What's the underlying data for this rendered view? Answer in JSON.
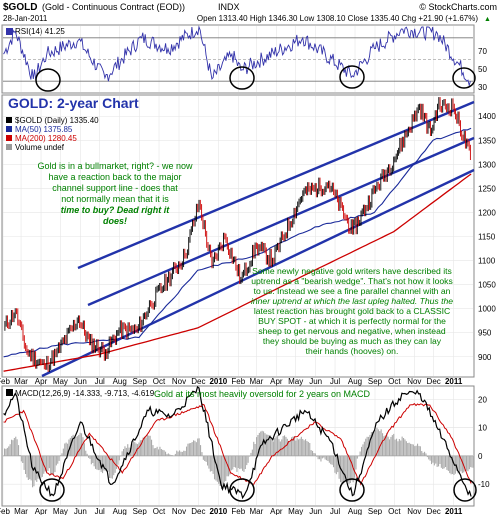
{
  "header": {
    "symbol": "$GOLD",
    "name": "(Gold - Continuous Contract (EOD))",
    "exchange": "INDX",
    "brand": "© StockCharts.com",
    "date": "28-Jan-2011",
    "quote": "Open 1313.40  High 1346.30  Low 1308.10  Close 1335.40  Chg +21.90 (+1.67%)",
    "chg_arrow": "▲"
  },
  "rsi": {
    "label": "RSI(14) 41.25",
    "ticks": [
      "70",
      "50",
      "30"
    ]
  },
  "price": {
    "title": "GOLD: 2-year Chart",
    "legend": [
      "$GOLD (Daily) 1335.40",
      "MA(50) 1375.85",
      "MA(200) 1280.45",
      "Volume undef"
    ],
    "legend_colors": [
      "#000000",
      "#1a2a9a",
      "#cc0000",
      "#000000"
    ],
    "yticks": [
      "1400",
      "1350",
      "1300",
      "1250",
      "1200",
      "1150",
      "1100",
      "1050",
      "1000",
      "950",
      "900"
    ],
    "note1": [
      "Gold is in a bullmarket, right? - we now",
      "have a reaction back to the major",
      "channel support line - does that",
      "not normally mean that it is",
      "time to buy? Dead right it",
      "does!"
    ],
    "note2": [
      "Some newly negative gold writers have described its",
      "uptrend as a \"bearish wedge\". That's not how it looks",
      "to us. Instead we see a fine parallel channel with an",
      "inner uptrend at which the last upleg halted. Thus the",
      "latest reaction has brought gold back to a CLASSIC",
      "BUY SPOT - at which it is perfectly normal for the",
      "sheep to get nervous and negative, when instead",
      "they should be buying as much as they can lay",
      "their hands (hooves) on."
    ]
  },
  "months": [
    "Feb",
    "Mar",
    "Apr",
    "May",
    "Jun",
    "Jul",
    "Aug",
    "Sep",
    "Oct",
    "Nov",
    "Dec",
    "2010",
    "Feb",
    "Mar",
    "Apr",
    "May",
    "Jun",
    "Jul",
    "Aug",
    "Sep",
    "Oct",
    "Nov",
    "Dec",
    "2011"
  ],
  "macd": {
    "label": "MACD(12,26,9) -14.333, -9.713, -4.619",
    "note": "Gold at its most heavily oversold for 2 years on MACD",
    "yticks": [
      "20",
      "10",
      "0",
      "-10"
    ]
  },
  "chart_data": {
    "type": "line",
    "title": "GOLD: 2-year Chart",
    "xlabel": "",
    "ylabel": "",
    "ylim": [
      860,
      1440
    ],
    "x_range": [
      "2009-02",
      "2011-01-28"
    ],
    "series": [
      {
        "name": "$GOLD (Daily)",
        "points": [
          [
            "2009-02-02",
            960
          ],
          [
            "2009-02-20",
            995
          ],
          [
            "2009-03-10",
            910
          ],
          [
            "2009-04-06",
            880
          ],
          [
            "2009-04-24",
            905
          ],
          [
            "2009-05-29",
            980
          ],
          [
            "2009-06-15",
            930
          ],
          [
            "2009-07-10",
            910
          ],
          [
            "2009-07-31",
            955
          ],
          [
            "2009-08-28",
            955
          ],
          [
            "2009-09-18",
            1010
          ],
          [
            "2009-10-14",
            1060
          ],
          [
            "2009-11-10",
            1110
          ],
          [
            "2009-12-02",
            1220
          ],
          [
            "2009-12-22",
            1090
          ],
          [
            "2010-01-11",
            1150
          ],
          [
            "2010-02-05",
            1060
          ],
          [
            "2010-03-01",
            1130
          ],
          [
            "2010-03-26",
            1100
          ],
          [
            "2010-05-12",
            1240
          ],
          [
            "2010-06-21",
            1260
          ],
          [
            "2010-07-28",
            1160
          ],
          [
            "2010-08-31",
            1245
          ],
          [
            "2010-09-30",
            1310
          ],
          [
            "2010-11-09",
            1420
          ],
          [
            "2010-11-26",
            1365
          ],
          [
            "2010-12-07",
            1420
          ],
          [
            "2010-12-31",
            1420
          ],
          [
            "2011-01-27",
            1315
          ]
        ]
      },
      {
        "name": "MA(50)",
        "points": [
          [
            "2009-02-02",
            900
          ],
          [
            "2009-04-30",
            925
          ],
          [
            "2009-08-31",
            940
          ],
          [
            "2009-11-30",
            1080
          ],
          [
            "2010-02-26",
            1110
          ],
          [
            "2010-05-31",
            1170
          ],
          [
            "2010-08-31",
            1200
          ],
          [
            "2010-11-30",
            1350
          ],
          [
            "2011-01-28",
            1375
          ]
        ]
      },
      {
        "name": "MA(200)",
        "points": [
          [
            "2009-02-02",
            870
          ],
          [
            "2009-06-30",
            905
          ],
          [
            "2009-11-30",
            960
          ],
          [
            "2010-04-30",
            1060
          ],
          [
            "2010-09-30",
            1160
          ],
          [
            "2011-01-28",
            1280
          ]
        ]
      }
    ],
    "rsi_ylim": [
      20,
      80
    ],
    "rsi_points": [
      [
        "2009-02-02",
        55
      ],
      [
        "2009-02-20",
        76
      ],
      [
        "2009-03-20",
        32
      ],
      [
        "2009-04-10",
        55
      ],
      [
        "2009-05-29",
        68
      ],
      [
        "2009-07-09",
        33
      ],
      [
        "2009-09-04",
        70
      ],
      [
        "2009-10-15",
        60
      ],
      [
        "2009-12-02",
        80
      ],
      [
        "2009-12-22",
        32
      ],
      [
        "2010-01-22",
        55
      ],
      [
        "2010-02-05",
        40
      ],
      [
        "2010-05-12",
        70
      ],
      [
        "2010-07-28",
        35
      ],
      [
        "2010-08-31",
        60
      ],
      [
        "2010-10-14",
        78
      ],
      [
        "2010-12-07",
        74
      ],
      [
        "2011-01-27",
        30
      ]
    ],
    "macd_ylim": [
      -17,
      24
    ],
    "macd_points": [
      [
        "2009-02-02",
        15
      ],
      [
        "2009-02-20",
        22
      ],
      [
        "2009-03-20",
        -5
      ],
      [
        "2009-04-20",
        -14
      ],
      [
        "2009-06-01",
        12
      ],
      [
        "2009-07-20",
        -10
      ],
      [
        "2009-09-15",
        16
      ],
      [
        "2009-10-20",
        14
      ],
      [
        "2009-12-02",
        24
      ],
      [
        "2010-01-05",
        -10
      ],
      [
        "2010-02-10",
        -14
      ],
      [
        "2010-03-10",
        4
      ],
      [
        "2010-05-15",
        16
      ],
      [
        "2010-06-25",
        5
      ],
      [
        "2010-07-28",
        -14
      ],
      [
        "2010-09-05",
        12
      ],
      [
        "2010-10-15",
        22
      ],
      [
        "2010-11-10",
        22
      ],
      [
        "2010-12-15",
        6
      ],
      [
        "2011-01-28",
        -14.333
      ]
    ],
    "signal_points": [
      [
        "2009-02-02",
        12
      ],
      [
        "2009-03-05",
        16
      ],
      [
        "2009-04-10",
        -6
      ],
      [
        "2009-05-05",
        -8
      ],
      [
        "2009-06-15",
        8
      ],
      [
        "2009-08-05",
        -6
      ],
      [
        "2009-09-25",
        12
      ],
      [
        "2009-12-10",
        18
      ],
      [
        "2010-01-20",
        -6
      ],
      [
        "2010-02-25",
        -10
      ],
      [
        "2010-03-25",
        0
      ],
      [
        "2010-05-30",
        12
      ],
      [
        "2010-07-10",
        6
      ],
      [
        "2010-08-10",
        -10
      ],
      [
        "2010-09-20",
        8
      ],
      [
        "2010-10-25",
        18
      ],
      [
        "2010-11-25",
        18
      ],
      [
        "2010-12-30",
        6
      ],
      [
        "2011-01-28",
        -9.713
      ]
    ]
  }
}
